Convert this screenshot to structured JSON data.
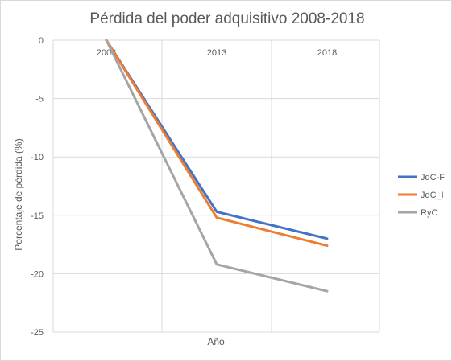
{
  "chart_data": {
    "type": "line",
    "title": "Pérdida del poder adquisitivo 2008-2018",
    "xlabel": "Año",
    "ylabel": "Porcentaje de pérdida (%)",
    "categories": [
      "2008",
      "2013",
      "2018"
    ],
    "ylim": [
      -25,
      0
    ],
    "yticks": [
      0,
      -5,
      -10,
      -15,
      -20,
      -25
    ],
    "grid": true,
    "legend": "right",
    "series": [
      {
        "name": "JdC-F",
        "color": "#4472c4",
        "values": [
          0,
          -14.7,
          -17.0
        ]
      },
      {
        "name": "JdC_I",
        "color": "#ed7d31",
        "values": [
          0,
          -15.2,
          -17.6
        ]
      },
      {
        "name": "RyC",
        "color": "#a5a5a5",
        "values": [
          0,
          -19.2,
          -21.5
        ]
      }
    ]
  }
}
